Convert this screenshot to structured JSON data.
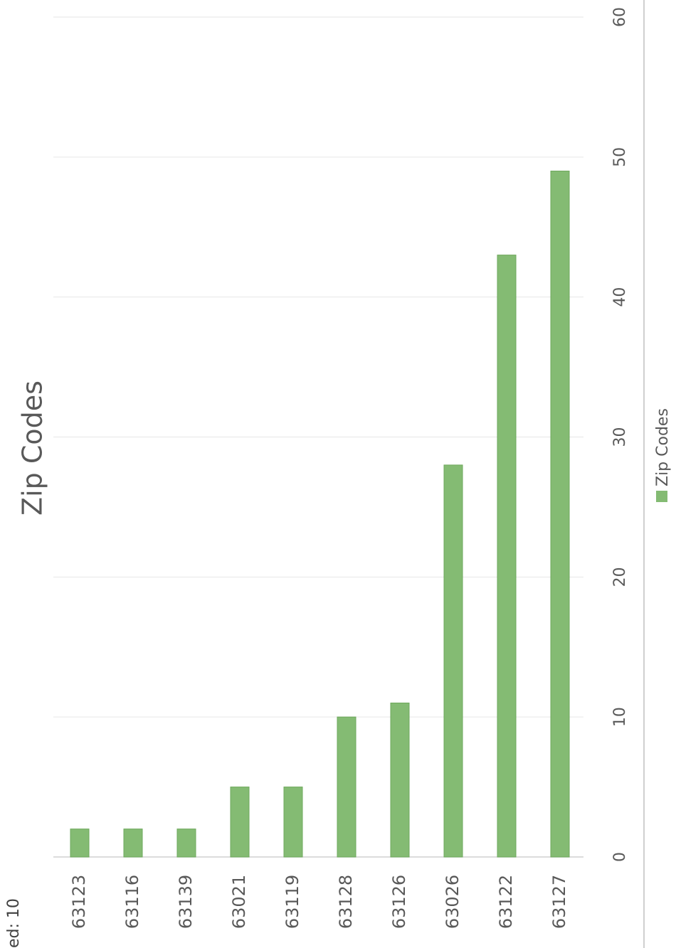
{
  "corner_text": "ed: 10",
  "chart_data": {
    "type": "bar",
    "orientation": "horizontal",
    "title": "Zip Codes",
    "categories": [
      "63123",
      "63116",
      "63139",
      "63021",
      "63119",
      "63128",
      "63126",
      "63026",
      "63122",
      "63127"
    ],
    "series": [
      {
        "name": "Zip Codes",
        "values": [
          2,
          2,
          2,
          5,
          5,
          10,
          11,
          28,
          43,
          49
        ],
        "color": "#84bb73"
      }
    ],
    "value_axis": {
      "min": 0,
      "max": 60,
      "ticks": [
        "0",
        "10",
        "20",
        "30",
        "40",
        "50",
        "60"
      ]
    },
    "grid": true,
    "legend": "bottom",
    "colors": {
      "bar": "#84bb73",
      "bar_border": "#6ea85c",
      "grid": "#e6e6e6",
      "text": "#595959"
    }
  }
}
